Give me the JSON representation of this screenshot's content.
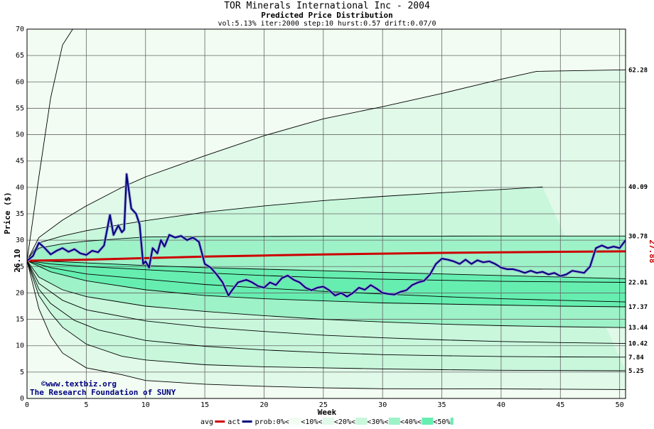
{
  "chart_data": {
    "type": "line",
    "title": "TOR Minerals International Inc - 2004",
    "subtitle": "Predicted Price Distribution",
    "params": "vol:5.13% iter:2000 step:10 hurst:0.57 drift:0.07/0",
    "xlabel": "Week",
    "ylabel": "Price ($)",
    "xlim": [
      0,
      50.5
    ],
    "ylim": [
      0,
      70
    ],
    "x_ticks": [
      0,
      5,
      10,
      15,
      20,
      25,
      30,
      35,
      40,
      45,
      50
    ],
    "y_ticks": [
      0,
      5,
      10,
      15,
      20,
      25,
      30,
      35,
      40,
      45,
      50,
      55,
      60,
      65,
      70
    ],
    "grid": true,
    "start_value": {
      "x": 0,
      "y": 26.1,
      "label": "26.10"
    },
    "end_value": {
      "x": 50.5,
      "y": 27.88,
      "label": "27.88",
      "color": "#cc0000"
    },
    "percentile_bands": [
      {
        "name": "upper-envelope",
        "label": "",
        "points": [
          [
            0,
            26.1
          ],
          [
            1,
            42
          ],
          [
            2,
            57
          ],
          [
            3,
            67
          ],
          [
            4,
            70.5
          ]
        ]
      },
      {
        "name": "p-upper-1",
        "label": "62.28",
        "points": [
          [
            0,
            26.1
          ],
          [
            1,
            30.5
          ],
          [
            3,
            33.8
          ],
          [
            5,
            36.5
          ],
          [
            8,
            40
          ],
          [
            10,
            42
          ],
          [
            15,
            46
          ],
          [
            20,
            49.8
          ],
          [
            25,
            53
          ],
          [
            30,
            55.3
          ],
          [
            35,
            57.8
          ],
          [
            40,
            60.5
          ],
          [
            43,
            62
          ],
          [
            50.5,
            62.28
          ]
        ]
      },
      {
        "name": "p-upper-2",
        "label": "40.09",
        "points": [
          [
            0,
            26.1
          ],
          [
            1,
            29.5
          ],
          [
            3,
            30.8
          ],
          [
            5,
            31.8
          ],
          [
            8,
            33
          ],
          [
            10,
            33.7
          ],
          [
            15,
            35.3
          ],
          [
            20,
            36.5
          ],
          [
            25,
            37.5
          ],
          [
            30,
            38.3
          ],
          [
            35,
            39
          ],
          [
            40,
            39.6
          ],
          [
            43.5,
            40.09
          ]
        ]
      },
      {
        "name": "p-upper-3",
        "label": "30.78",
        "points": [
          [
            0,
            26.1
          ],
          [
            1,
            28.5
          ],
          [
            3,
            29.3
          ],
          [
            5,
            29.8
          ],
          [
            8,
            30.3
          ],
          [
            10,
            30.6
          ],
          [
            15,
            30.7
          ],
          [
            20,
            30.7
          ],
          [
            25,
            30.75
          ],
          [
            30,
            30.75
          ],
          [
            35,
            30.77
          ],
          [
            40,
            30.78
          ],
          [
            50.5,
            30.78
          ]
        ]
      },
      {
        "name": "p-mid-1",
        "label": "",
        "points": [
          [
            0,
            26.1
          ],
          [
            2,
            26
          ],
          [
            5,
            25.7
          ],
          [
            10,
            25.2
          ],
          [
            15,
            24.8
          ],
          [
            20,
            24.5
          ],
          [
            25,
            24.2
          ],
          [
            30,
            23.9
          ],
          [
            35,
            23.6
          ],
          [
            40,
            23.3
          ],
          [
            45,
            23
          ],
          [
            50.5,
            22.7
          ]
        ]
      },
      {
        "name": "p-mid-2",
        "label": "22.01",
        "points": [
          [
            0,
            26.1
          ],
          [
            2,
            25.5
          ],
          [
            5,
            25
          ],
          [
            10,
            24.4
          ],
          [
            15,
            23.8
          ],
          [
            20,
            23.3
          ],
          [
            25,
            22.9
          ],
          [
            30,
            22.6
          ],
          [
            35,
            22.4
          ],
          [
            40,
            22.2
          ],
          [
            45,
            22.1
          ],
          [
            50.5,
            22.01
          ]
        ]
      },
      {
        "name": "p-mid-3",
        "label": "",
        "points": [
          [
            0,
            26.1
          ],
          [
            2,
            24.8
          ],
          [
            5,
            23.6
          ],
          [
            10,
            22.6
          ],
          [
            15,
            21.6
          ],
          [
            20,
            20.9
          ],
          [
            25,
            20.3
          ],
          [
            30,
            19.8
          ],
          [
            35,
            19.3
          ],
          [
            40,
            18.9
          ],
          [
            45,
            18.6
          ],
          [
            50.5,
            18.3
          ]
        ]
      },
      {
        "name": "p-lower-1",
        "label": "17.37",
        "points": [
          [
            0,
            26.1
          ],
          [
            2,
            24
          ],
          [
            5,
            22.3
          ],
          [
            10,
            20.6
          ],
          [
            15,
            19.5
          ],
          [
            20,
            18.9
          ],
          [
            25,
            18.5
          ],
          [
            30,
            18.1
          ],
          [
            35,
            17.9
          ],
          [
            40,
            17.7
          ],
          [
            45,
            17.5
          ],
          [
            50.5,
            17.37
          ]
        ]
      },
      {
        "name": "p-lower-2",
        "label": "13.44",
        "points": [
          [
            0,
            26.1
          ],
          [
            1,
            23
          ],
          [
            3,
            20.6
          ],
          [
            5,
            19.3
          ],
          [
            10,
            17.5
          ],
          [
            15,
            16.5
          ],
          [
            20,
            15.7
          ],
          [
            25,
            15
          ],
          [
            30,
            14.5
          ],
          [
            35,
            14.1
          ],
          [
            40,
            13.8
          ],
          [
            45,
            13.6
          ],
          [
            50.5,
            13.44
          ]
        ]
      },
      {
        "name": "p-lower-3",
        "label": "10.42",
        "points": [
          [
            0,
            26.1
          ],
          [
            1,
            21.8
          ],
          [
            3,
            18.6
          ],
          [
            5,
            16.8
          ],
          [
            10,
            14.7
          ],
          [
            15,
            13.5
          ],
          [
            20,
            12.7
          ],
          [
            25,
            12
          ],
          [
            30,
            11.5
          ],
          [
            35,
            11.1
          ],
          [
            40,
            10.8
          ],
          [
            45,
            10.6
          ],
          [
            50.5,
            10.42
          ]
        ]
      },
      {
        "name": "p-lower-4",
        "label": "7.84",
        "points": [
          [
            0,
            26.1
          ],
          [
            1,
            20.7
          ],
          [
            2,
            18
          ],
          [
            4,
            14.8
          ],
          [
            6,
            13
          ],
          [
            10,
            11
          ],
          [
            15,
            9.9
          ],
          [
            20,
            9.2
          ],
          [
            25,
            8.7
          ],
          [
            30,
            8.3
          ],
          [
            35,
            8.1
          ],
          [
            40,
            7.95
          ],
          [
            45,
            7.88
          ],
          [
            50.5,
            7.84
          ]
        ]
      },
      {
        "name": "p-lower-5",
        "label": "5.25",
        "points": [
          [
            0,
            26.1
          ],
          [
            1,
            19.5
          ],
          [
            2,
            16.2
          ],
          [
            3,
            13.5
          ],
          [
            5,
            10.3
          ],
          [
            8,
            8
          ],
          [
            10,
            7.3
          ],
          [
            15,
            6.4
          ],
          [
            20,
            6
          ],
          [
            25,
            5.8
          ],
          [
            30,
            5.6
          ],
          [
            35,
            5.45
          ],
          [
            40,
            5.35
          ],
          [
            50.5,
            5.25
          ]
        ]
      },
      {
        "name": "lower-envelope",
        "label": "",
        "points": [
          [
            0,
            26.1
          ],
          [
            1,
            17
          ],
          [
            2,
            11.8
          ],
          [
            3,
            8.6
          ],
          [
            5,
            5.8
          ],
          [
            8,
            4.5
          ],
          [
            10,
            3.4
          ],
          [
            15,
            2.7
          ],
          [
            20,
            2.3
          ],
          [
            25,
            2
          ],
          [
            30,
            1.85
          ],
          [
            40,
            1.8
          ],
          [
            50.5,
            1.7
          ]
        ]
      }
    ],
    "series": [
      {
        "name": "avg",
        "color": "#cc0000",
        "points": [
          [
            0,
            26.1
          ],
          [
            5,
            26.3
          ],
          [
            10,
            26.6
          ],
          [
            15,
            26.9
          ],
          [
            20,
            27.1
          ],
          [
            25,
            27.3
          ],
          [
            30,
            27.45
          ],
          [
            35,
            27.6
          ],
          [
            40,
            27.7
          ],
          [
            45,
            27.8
          ],
          [
            50.5,
            27.88
          ]
        ]
      },
      {
        "name": "act",
        "color": "#000080",
        "points": [
          [
            0,
            26.1
          ],
          [
            0.5,
            27
          ],
          [
            1,
            29.5
          ],
          [
            1.5,
            28.5
          ],
          [
            2,
            27.3
          ],
          [
            2.5,
            28
          ],
          [
            3,
            28.5
          ],
          [
            3.5,
            27.8
          ],
          [
            4,
            28.3
          ],
          [
            4.5,
            27.5
          ],
          [
            5,
            27.2
          ],
          [
            5.5,
            28
          ],
          [
            6,
            27.7
          ],
          [
            6.5,
            29
          ],
          [
            7,
            34.8
          ],
          [
            7.3,
            31
          ],
          [
            7.7,
            32.8
          ],
          [
            8,
            31.5
          ],
          [
            8.2,
            32
          ],
          [
            8.4,
            42.5
          ],
          [
            8.8,
            36
          ],
          [
            9.2,
            35
          ],
          [
            9.5,
            33
          ],
          [
            9.8,
            25.5
          ],
          [
            10,
            26
          ],
          [
            10.3,
            24.8
          ],
          [
            10.6,
            28.5
          ],
          [
            11,
            27.5
          ],
          [
            11.3,
            30
          ],
          [
            11.6,
            28.8
          ],
          [
            12,
            31
          ],
          [
            12.5,
            30.5
          ],
          [
            13,
            30.8
          ],
          [
            13.5,
            30
          ],
          [
            14,
            30.5
          ],
          [
            14.5,
            29.7
          ],
          [
            15,
            25.5
          ],
          [
            15.5,
            24.8
          ],
          [
            16,
            23.5
          ],
          [
            16.5,
            22
          ],
          [
            17,
            19.5
          ],
          [
            17.3,
            20.5
          ],
          [
            17.8,
            22
          ],
          [
            18.5,
            22.5
          ],
          [
            19,
            22
          ],
          [
            19.5,
            21.3
          ],
          [
            20,
            21
          ],
          [
            20.5,
            22
          ],
          [
            21,
            21.5
          ],
          [
            21.5,
            22.8
          ],
          [
            22,
            23.3
          ],
          [
            22.5,
            22.5
          ],
          [
            23,
            22
          ],
          [
            23.5,
            21
          ],
          [
            24,
            20.5
          ],
          [
            24.5,
            21
          ],
          [
            25,
            21.2
          ],
          [
            25.5,
            20.5
          ],
          [
            26,
            19.5
          ],
          [
            26.5,
            20
          ],
          [
            27,
            19.3
          ],
          [
            27.5,
            20
          ],
          [
            28,
            21
          ],
          [
            28.5,
            20.6
          ],
          [
            29,
            21.5
          ],
          [
            29.5,
            20.8
          ],
          [
            30,
            20
          ],
          [
            30.5,
            19.8
          ],
          [
            31,
            19.7
          ],
          [
            31.5,
            20.2
          ],
          [
            32,
            20.5
          ],
          [
            32.5,
            21.5
          ],
          [
            33,
            22
          ],
          [
            33.5,
            22.3
          ],
          [
            34,
            23.5
          ],
          [
            34.5,
            25.5
          ],
          [
            35,
            26.5
          ],
          [
            35.5,
            26.3
          ],
          [
            36,
            26
          ],
          [
            36.5,
            25.5
          ],
          [
            37,
            26.3
          ],
          [
            37.5,
            25.5
          ],
          [
            38,
            26.2
          ],
          [
            38.5,
            25.8
          ],
          [
            39,
            26
          ],
          [
            39.5,
            25.5
          ],
          [
            40,
            24.8
          ],
          [
            40.5,
            24.5
          ],
          [
            41,
            24.5
          ],
          [
            41.5,
            24.2
          ],
          [
            42,
            23.8
          ],
          [
            42.5,
            24.2
          ],
          [
            43,
            23.8
          ],
          [
            43.5,
            24
          ],
          [
            44,
            23.5
          ],
          [
            44.5,
            23.8
          ],
          [
            45,
            23.2
          ],
          [
            45.5,
            23.5
          ],
          [
            46,
            24.2
          ],
          [
            46.5,
            24
          ],
          [
            47,
            23.8
          ],
          [
            47.5,
            25
          ],
          [
            48,
            28.5
          ],
          [
            48.5,
            29
          ],
          [
            49,
            28.5
          ],
          [
            49.5,
            28.8
          ],
          [
            50,
            28.5
          ],
          [
            50.5,
            30
          ]
        ]
      }
    ],
    "legend": {
      "items": [
        "avg",
        "act",
        "prob:0%<",
        "<10%<",
        "<20%<",
        "<30%<",
        "<40%<",
        "<50%"
      ],
      "colors": [
        "#cc0000",
        "#000080",
        "#ffffff",
        "#f2fcf2",
        "#e0f9e8",
        "#c8f7dc",
        "#9ef2c8",
        "#66eeb0"
      ]
    },
    "annotations": [
      {
        "text": "©www.textbiz.org"
      },
      {
        "text": "The Research Foundation of SUNY"
      }
    ],
    "colors": {
      "plot_bg": "#f2fcf2",
      "grid": "#666666",
      "band_1": "#e0f9e8",
      "band_2": "#c8f7dc",
      "band_3": "#9ef2c8",
      "band_4": "#66eeb0",
      "act": "#000080",
      "avg": "#cc0000"
    }
  }
}
